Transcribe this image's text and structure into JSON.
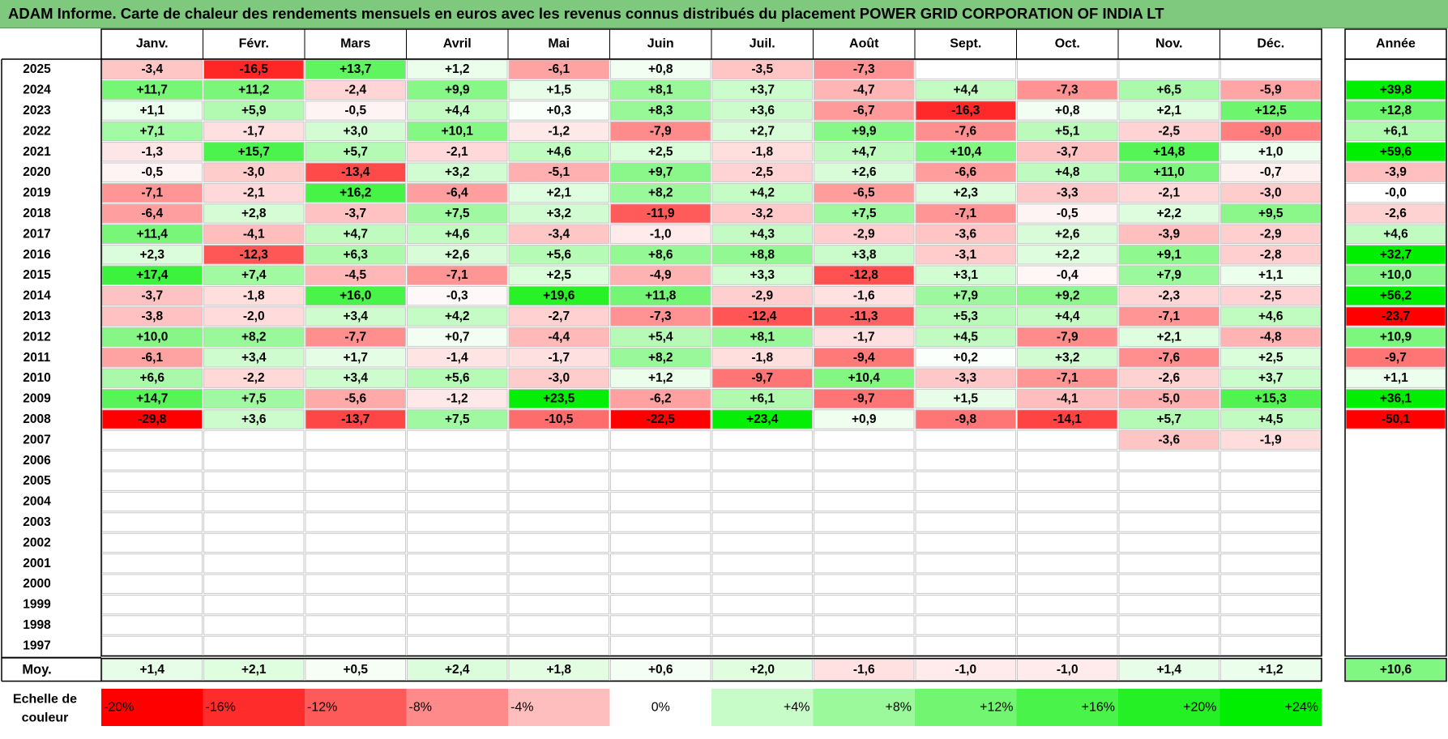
{
  "title": "ADAM Informe. Carte de chaleur des rendements mensuels en euros avec les revenus connus distribués du placement POWER GRID CORPORATION OF INDIA LT",
  "chart_data": {
    "type": "heatmap",
    "months": [
      "Janv.",
      "Févr.",
      "Mars",
      "Avril",
      "Mai",
      "Juin",
      "Juil.",
      "Août",
      "Sept.",
      "Oct.",
      "Nov.",
      "Déc."
    ],
    "year_header": "Année",
    "rows": [
      {
        "year": "2025",
        "values": [
          "-3,4",
          "-16,5",
          "+13,7",
          "+1,2",
          "-6,1",
          "+0,8",
          "-3,5",
          "-7,3",
          "",
          "",
          "",
          ""
        ],
        "annual": ""
      },
      {
        "year": "2024",
        "values": [
          "+11,7",
          "+11,2",
          "-2,4",
          "+9,9",
          "+1,5",
          "+8,1",
          "+3,7",
          "-4,7",
          "+4,4",
          "-7,3",
          "+6,5",
          "-5,9"
        ],
        "annual": "+39,8"
      },
      {
        "year": "2023",
        "values": [
          "+1,1",
          "+5,9",
          "-0,5",
          "+4,4",
          "+0,3",
          "+8,3",
          "+3,6",
          "-6,7",
          "-16,3",
          "+0,8",
          "+2,1",
          "+12,5"
        ],
        "annual": "+12,8"
      },
      {
        "year": "2022",
        "values": [
          "+7,1",
          "-1,7",
          "+3,0",
          "+10,1",
          "-1,2",
          "-7,9",
          "+2,7",
          "+9,9",
          "-7,6",
          "+5,1",
          "-2,5",
          "-9,0"
        ],
        "annual": "+6,1"
      },
      {
        "year": "2021",
        "values": [
          "-1,3",
          "+15,7",
          "+5,7",
          "-2,1",
          "+4,6",
          "+2,5",
          "-1,8",
          "+4,7",
          "+10,4",
          "-3,7",
          "+14,8",
          "+1,0"
        ],
        "annual": "+59,6"
      },
      {
        "year": "2020",
        "values": [
          "-0,5",
          "-3,0",
          "-13,4",
          "+3,2",
          "-5,1",
          "+9,7",
          "-2,5",
          "+2,6",
          "-6,6",
          "+4,8",
          "+11,0",
          "-0,7"
        ],
        "annual": "-3,9"
      },
      {
        "year": "2019",
        "values": [
          "-7,1",
          "-2,1",
          "+16,2",
          "-6,4",
          "+2,1",
          "+8,2",
          "+4,2",
          "-6,5",
          "+2,3",
          "-3,3",
          "-2,1",
          "-3,0"
        ],
        "annual": "-0,0"
      },
      {
        "year": "2018",
        "values": [
          "-6,4",
          "+2,8",
          "-3,7",
          "+7,5",
          "+3,2",
          "-11,9",
          "-3,2",
          "+7,5",
          "-7,1",
          "-0,5",
          "+2,2",
          "+9,5"
        ],
        "annual": "-2,6"
      },
      {
        "year": "2017",
        "values": [
          "+11,4",
          "-4,1",
          "+4,7",
          "+4,6",
          "-3,4",
          "-1,0",
          "+4,3",
          "-2,9",
          "-3,6",
          "+2,6",
          "-3,9",
          "-2,9"
        ],
        "annual": "+4,6"
      },
      {
        "year": "2016",
        "values": [
          "+2,3",
          "-12,3",
          "+6,3",
          "+2,6",
          "+5,6",
          "+8,6",
          "+8,8",
          "+3,8",
          "-3,1",
          "+2,2",
          "+9,1",
          "-2,8"
        ],
        "annual": "+32,7"
      },
      {
        "year": "2015",
        "values": [
          "+17,4",
          "+7,4",
          "-4,5",
          "-7,1",
          "+2,5",
          "-4,9",
          "+3,3",
          "-12,8",
          "+3,1",
          "-0,4",
          "+7,9",
          "+1,1"
        ],
        "annual": "+10,0"
      },
      {
        "year": "2014",
        "values": [
          "-3,7",
          "-1,8",
          "+16,0",
          "-0,3",
          "+19,6",
          "+11,8",
          "-2,9",
          "-1,6",
          "+7,9",
          "+9,2",
          "-2,3",
          "-2,5"
        ],
        "annual": "+56,2"
      },
      {
        "year": "2013",
        "values": [
          "-3,8",
          "-2,0",
          "+3,4",
          "+4,2",
          "-2,7",
          "-7,3",
          "-12,4",
          "-11,3",
          "+5,3",
          "+4,4",
          "-7,1",
          "+4,6"
        ],
        "annual": "-23,7"
      },
      {
        "year": "2012",
        "values": [
          "+10,0",
          "+8,2",
          "-7,7",
          "+0,7",
          "-4,4",
          "+5,4",
          "+8,1",
          "-1,7",
          "+4,5",
          "-7,9",
          "+2,1",
          "-4,8"
        ],
        "annual": "+10,9"
      },
      {
        "year": "2011",
        "values": [
          "-6,1",
          "+3,4",
          "+1,7",
          "-1,4",
          "-1,7",
          "+8,2",
          "-1,8",
          "-9,4",
          "+0,2",
          "+3,2",
          "-7,6",
          "+2,5"
        ],
        "annual": "-9,7"
      },
      {
        "year": "2010",
        "values": [
          "+6,6",
          "-2,2",
          "+3,4",
          "+5,6",
          "-3,0",
          "+1,2",
          "-9,7",
          "+10,4",
          "-3,3",
          "-7,1",
          "-2,6",
          "+3,7"
        ],
        "annual": "+1,1"
      },
      {
        "year": "2009",
        "values": [
          "+14,7",
          "+7,5",
          "-5,6",
          "-1,2",
          "+23,5",
          "-6,2",
          "+6,1",
          "-9,7",
          "+1,5",
          "-4,1",
          "-5,0",
          "+15,3"
        ],
        "annual": "+36,1"
      },
      {
        "year": "2008",
        "values": [
          "-29,8",
          "+3,6",
          "-13,7",
          "+7,5",
          "-10,5",
          "-22,5",
          "+23,4",
          "+0,9",
          "-9,8",
          "-14,1",
          "+5,7",
          "+4,5"
        ],
        "annual": "-50,1"
      },
      {
        "year": "2007",
        "values": [
          "",
          "",
          "",
          "",
          "",
          "",
          "",
          "",
          "",
          "",
          "-3,6",
          "-1,9"
        ],
        "annual": ""
      },
      {
        "year": "2006",
        "values": [
          "",
          "",
          "",
          "",
          "",
          "",
          "",
          "",
          "",
          "",
          "",
          ""
        ],
        "annual": ""
      },
      {
        "year": "2005",
        "values": [
          "",
          "",
          "",
          "",
          "",
          "",
          "",
          "",
          "",
          "",
          "",
          ""
        ],
        "annual": ""
      },
      {
        "year": "2004",
        "values": [
          "",
          "",
          "",
          "",
          "",
          "",
          "",
          "",
          "",
          "",
          "",
          ""
        ],
        "annual": ""
      },
      {
        "year": "2003",
        "values": [
          "",
          "",
          "",
          "",
          "",
          "",
          "",
          "",
          "",
          "",
          "",
          ""
        ],
        "annual": ""
      },
      {
        "year": "2002",
        "values": [
          "",
          "",
          "",
          "",
          "",
          "",
          "",
          "",
          "",
          "",
          "",
          ""
        ],
        "annual": ""
      },
      {
        "year": "2001",
        "values": [
          "",
          "",
          "",
          "",
          "",
          "",
          "",
          "",
          "",
          "",
          "",
          ""
        ],
        "annual": ""
      },
      {
        "year": "2000",
        "values": [
          "",
          "",
          "",
          "",
          "",
          "",
          "",
          "",
          "",
          "",
          "",
          ""
        ],
        "annual": ""
      },
      {
        "year": "1999",
        "values": [
          "",
          "",
          "",
          "",
          "",
          "",
          "",
          "",
          "",
          "",
          "",
          ""
        ],
        "annual": ""
      },
      {
        "year": "1998",
        "values": [
          "",
          "",
          "",
          "",
          "",
          "",
          "",
          "",
          "",
          "",
          "",
          ""
        ],
        "annual": ""
      },
      {
        "year": "1997",
        "values": [
          "",
          "",
          "",
          "",
          "",
          "",
          "",
          "",
          "",
          "",
          "",
          ""
        ],
        "annual": ""
      }
    ],
    "average": {
      "label": "Moy.",
      "values": [
        "+1,4",
        "+2,1",
        "+0,5",
        "+2,4",
        "+1,8",
        "+0,6",
        "+2,0",
        "-1,6",
        "-1,0",
        "-1,0",
        "+1,4",
        "+1,2"
      ],
      "annual": "+10,6"
    },
    "color_scale": {
      "label_line1": "Echelle de",
      "label_line2": "couleur",
      "stops": [
        {
          "label": "-20%",
          "value": -20
        },
        {
          "label": "-16%",
          "value": -16
        },
        {
          "label": "-12%",
          "value": -12
        },
        {
          "label": "-8%",
          "value": -8
        },
        {
          "label": "-4%",
          "value": -4
        },
        {
          "label": "0%",
          "value": 0
        },
        {
          "label": "+4%",
          "value": 4
        },
        {
          "label": "+8%",
          "value": 8
        },
        {
          "label": "+12%",
          "value": 12
        },
        {
          "label": "+16%",
          "value": 16
        },
        {
          "label": "+20%",
          "value": 20
        },
        {
          "label": "+24%",
          "value": 24
        }
      ],
      "negative_color": "#ff0000",
      "positive_color": "#00ee00",
      "neutral_color": "#ffffff"
    }
  }
}
